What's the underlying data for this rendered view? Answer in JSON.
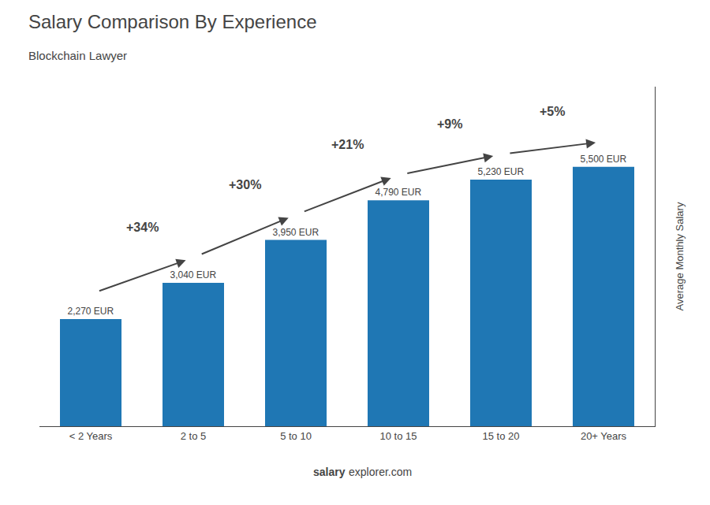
{
  "chart_data": {
    "type": "bar",
    "title": "Salary Comparison By Experience",
    "subtitle": "Blockchain Lawyer",
    "categories": [
      "< 2 Years",
      "2 to 5",
      "5 to 10",
      "10 to 15",
      "15 to 20",
      "20+ Years"
    ],
    "values": [
      2270,
      3040,
      3950,
      4790,
      5230,
      5500
    ],
    "value_labels": [
      "2,270 EUR",
      "3,040 EUR",
      "3,950 EUR",
      "4,790 EUR",
      "5,230 EUR",
      "5,500 EUR"
    ],
    "data_labels": true,
    "annotations": [
      "+34%",
      "+30%",
      "+21%",
      "+9%",
      "+5%"
    ],
    "ylabel": "Average Monthly Salary",
    "footer": [
      "salary",
      "explorer.com"
    ],
    "ylim": [
      0,
      7200
    ],
    "grid": false,
    "tick_labels": "x"
  }
}
